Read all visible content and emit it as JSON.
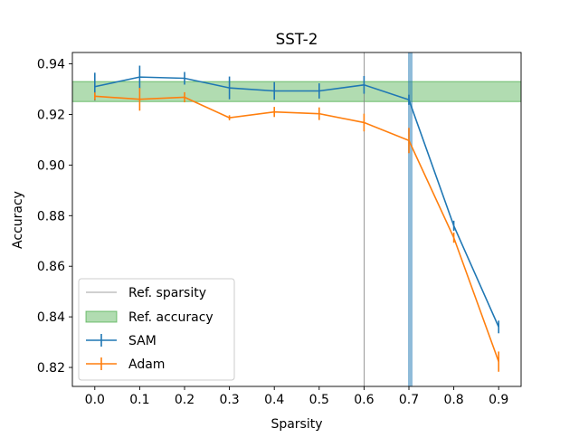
{
  "chart_data": {
    "type": "line",
    "title": "SST-2",
    "xlabel": "Sparsity",
    "ylabel": "Accuracy",
    "xlim": [
      -0.05,
      0.95
    ],
    "ylim": [
      0.8125,
      0.9445
    ],
    "x_ticks": [
      "0.0",
      "0.1",
      "0.2",
      "0.3",
      "0.4",
      "0.5",
      "0.6",
      "0.7",
      "0.8",
      "0.9"
    ],
    "y_ticks": [
      "0.82",
      "0.84",
      "0.86",
      "0.88",
      "0.90",
      "0.92",
      "0.94"
    ],
    "x": [
      0.0,
      0.1,
      0.2,
      0.3,
      0.4,
      0.5,
      0.6,
      0.7,
      0.8,
      0.9
    ],
    "series": [
      {
        "name": "SAM",
        "color": "#1f77b4",
        "values": [
          0.931,
          0.9348,
          0.9343,
          0.9305,
          0.9293,
          0.9293,
          0.9317,
          0.9258,
          0.876,
          0.836
        ],
        "errors": [
          0.0055,
          0.0045,
          0.0025,
          0.0045,
          0.0035,
          0.003,
          0.0035,
          0.002,
          0.002,
          0.0025
        ]
      },
      {
        "name": "Adam",
        "color": "#ff7f0e",
        "values": [
          0.9272,
          0.926,
          0.9268,
          0.9187,
          0.921,
          0.9203,
          0.9168,
          0.9097,
          0.8713,
          0.8223
        ],
        "errors": [
          0.0015,
          0.0045,
          0.002,
          0.001,
          0.002,
          0.0025,
          0.0035,
          0.005,
          0.002,
          0.004
        ]
      }
    ],
    "reference_sparsity": {
      "name": "Ref. sparsity",
      "x": 0.6,
      "color": "#808080"
    },
    "reference_accuracy": {
      "name": "Ref. accuracy",
      "y_range": [
        0.9251,
        0.933
      ],
      "color": "#2ca02c"
    },
    "highlight_line": {
      "x": 0.703,
      "color": "#1f77b4"
    },
    "legend": {
      "placement": "lower-left",
      "entries": [
        "Ref. sparsity",
        "Ref. accuracy",
        "SAM",
        "Adam"
      ]
    },
    "grid": false
  }
}
